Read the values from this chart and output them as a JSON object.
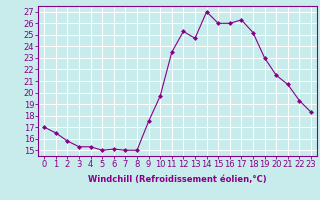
{
  "x": [
    0,
    1,
    2,
    3,
    4,
    5,
    6,
    7,
    8,
    9,
    10,
    11,
    12,
    13,
    14,
    15,
    16,
    17,
    18,
    19,
    20,
    21,
    22,
    23
  ],
  "y": [
    17.0,
    16.5,
    15.8,
    15.3,
    15.3,
    15.0,
    15.1,
    15.0,
    15.0,
    17.5,
    19.7,
    23.5,
    25.3,
    24.7,
    27.0,
    26.0,
    26.0,
    26.3,
    25.2,
    23.0,
    21.5,
    20.7,
    19.3,
    18.3
  ],
  "line_color": "#880088",
  "marker": "D",
  "marker_size": 2.0,
  "bg_color": "#c8ecec",
  "grid_color": "#ffffff",
  "ylabel_ticks": [
    15,
    16,
    17,
    18,
    19,
    20,
    21,
    22,
    23,
    24,
    25,
    26,
    27
  ],
  "ylim": [
    14.5,
    27.5
  ],
  "xlim": [
    -0.5,
    23.5
  ],
  "xlabel": "Windchill (Refroidissement éolien,°C)",
  "xlabel_fontsize": 6.0,
  "tick_fontsize": 6.0
}
